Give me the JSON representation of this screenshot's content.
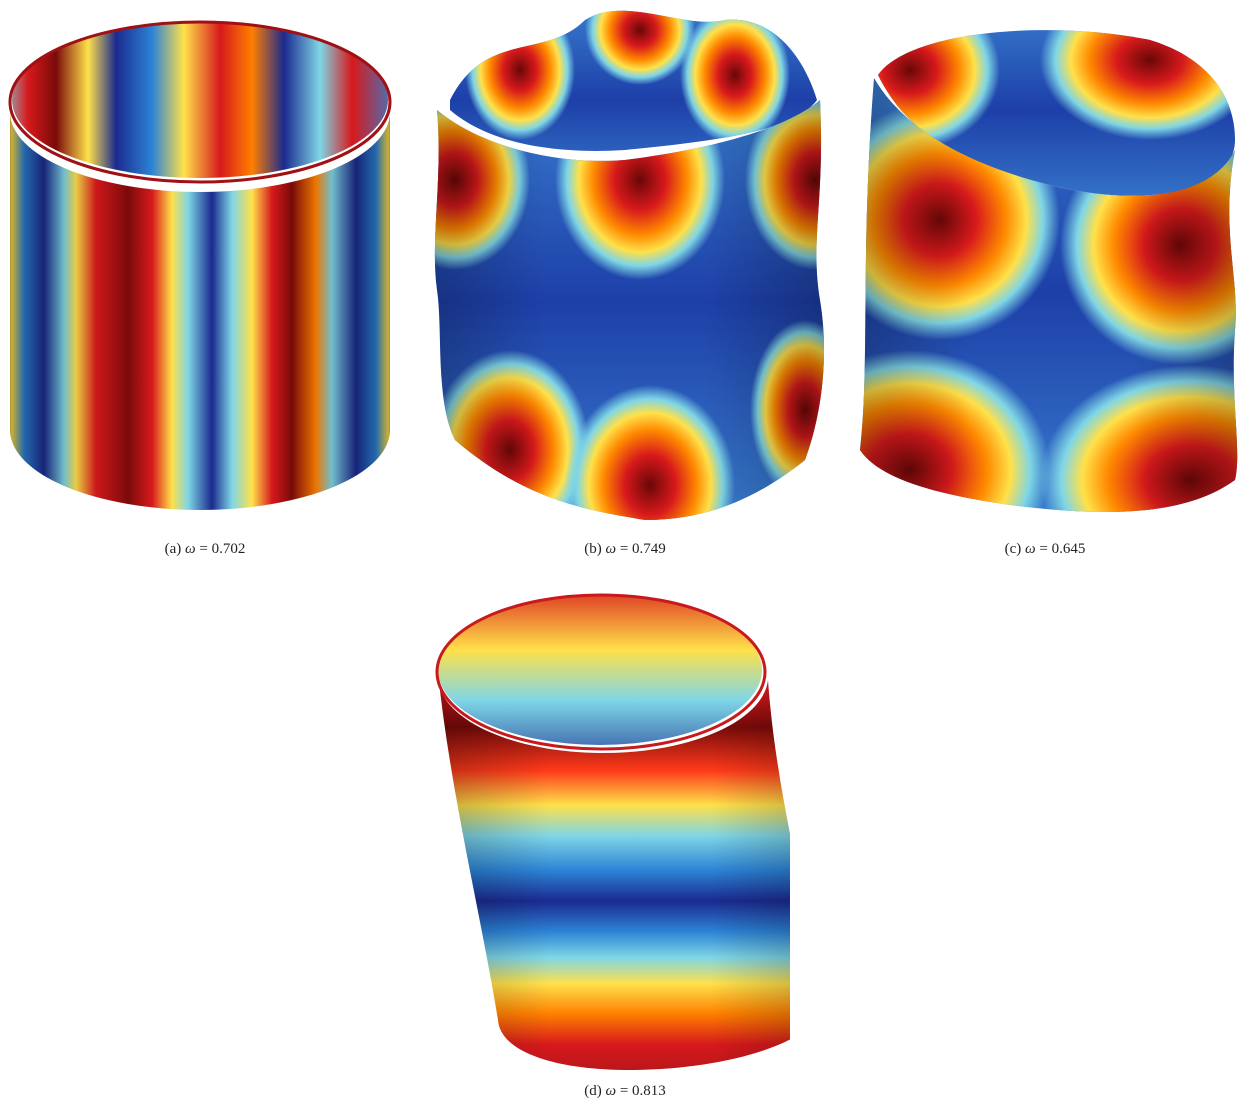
{
  "figure": {
    "panels": [
      {
        "id": "a",
        "letter": "(a)",
        "symbol": "ω",
        "relation": "= 0.702",
        "mode_pattern": "vertical-stripes"
      },
      {
        "id": "b",
        "letter": "(b)",
        "symbol": "ω",
        "relation": "= 0.749",
        "mode_pattern": "lobed-top-bottom"
      },
      {
        "id": "c",
        "letter": "(c)",
        "symbol": "ω",
        "relation": "= 0.645",
        "mode_pattern": "lobed-corners"
      },
      {
        "id": "d",
        "letter": "(d)",
        "symbol": "ω",
        "relation": "= 0.813",
        "mode_pattern": "horizontal-bands"
      }
    ],
    "colormap": [
      "#7a0a0a",
      "#d7191c",
      "#ff7f00",
      "#ffe14a",
      "#7fd6e6",
      "#2c83d6",
      "#1b2a8f"
    ]
  }
}
